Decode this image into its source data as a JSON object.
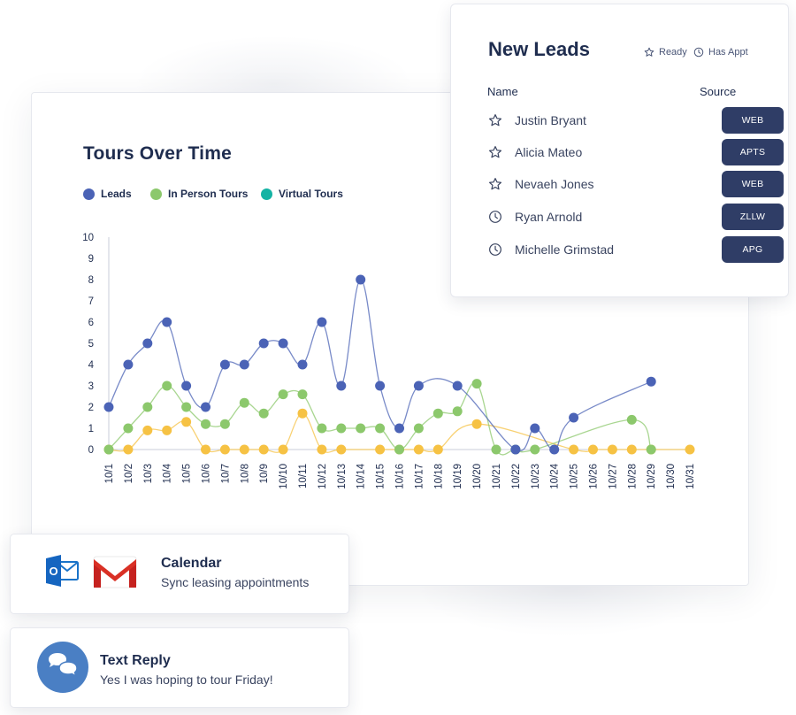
{
  "colors": {
    "navy": "#1f2d4f",
    "leads": "#4b63b6",
    "in_person": "#8cc86c",
    "virtual": "#14b3a4",
    "yellow": "#f6c244",
    "badge": "#2f3d66"
  },
  "chart_card": {
    "title": "Tours Over Time",
    "legend": [
      {
        "label": "Leads",
        "color": "#4b63b6"
      },
      {
        "label": "In Person Tours",
        "color": "#8cc86c"
      },
      {
        "label": "Virtual Tours",
        "color": "#14b3a4"
      }
    ]
  },
  "chart_data": {
    "type": "line",
    "title": "Tours Over Time",
    "ylim": [
      0,
      10
    ],
    "yticks": [
      0,
      1,
      2,
      3,
      4,
      5,
      6,
      7,
      8,
      9,
      10
    ],
    "categories": [
      "10/1",
      "10/2",
      "10/3",
      "10/4",
      "10/5",
      "10/6",
      "10/7",
      "10/8",
      "10/9",
      "10/10",
      "10/11",
      "10/12",
      "10/13",
      "10/14",
      "10/15",
      "10/16",
      "10/17",
      "10/18",
      "10/19",
      "10/20",
      "10/21",
      "10/22",
      "10/23",
      "10/24",
      "10/25",
      "10/26",
      "10/27",
      "10/28",
      "10/29",
      "10/30",
      "10/31"
    ],
    "series": [
      {
        "name": "Leads",
        "color": "#4b63b6",
        "values": [
          2,
          4,
          5,
          6,
          3,
          2,
          4,
          4,
          5,
          5,
          4,
          6,
          3,
          8,
          3,
          1,
          3,
          null,
          3,
          null,
          null,
          0,
          1,
          0,
          1.5,
          null,
          null,
          null,
          3.2,
          null,
          null
        ]
      },
      {
        "name": "In Person Tours",
        "color": "#8cc86c",
        "values": [
          0,
          1,
          2,
          3,
          2,
          1.2,
          1.2,
          2.2,
          1.7,
          2.6,
          2.6,
          1,
          1,
          1,
          1,
          0,
          1,
          1.7,
          1.8,
          3.1,
          0,
          0,
          0,
          null,
          null,
          null,
          null,
          1.4,
          0,
          null,
          null
        ]
      },
      {
        "name": "Virtual Tours",
        "color": "#f6c244",
        "values": [
          0,
          0,
          0.9,
          0.9,
          1.3,
          0,
          0,
          0,
          0,
          0,
          1.7,
          0,
          0,
          null,
          0,
          0,
          0,
          0,
          null,
          1.2,
          null,
          null,
          null,
          null,
          0,
          0,
          0,
          0,
          0,
          null,
          0
        ]
      }
    ],
    "grid": false,
    "legend_position": "top-left"
  },
  "leads_card": {
    "title": "New Leads",
    "status_ready": "Ready",
    "status_appt": "Has Appt",
    "col_name": "Name",
    "col_source": "Source",
    "rows": [
      {
        "name": "Justin Bryant",
        "icon": "star-icon",
        "source": "WEB"
      },
      {
        "name": "Alicia Mateo",
        "icon": "star-icon",
        "source": "APTS"
      },
      {
        "name": "Nevaeh Jones",
        "icon": "star-icon",
        "source": "WEB"
      },
      {
        "name": "Ryan Arnold",
        "icon": "clock-icon",
        "source": "ZLLW"
      },
      {
        "name": "Michelle Grimstad",
        "icon": "clock-icon",
        "source": "APG"
      }
    ]
  },
  "calendar_card": {
    "title": "Calendar",
    "subtitle": "Sync leasing appointments",
    "outlook_letter": "O",
    "icons": [
      "outlook-icon",
      "gmail-icon"
    ]
  },
  "text_card": {
    "title": "Text Reply",
    "message": "Yes I was hoping to tour Friday!",
    "icon": "chat-bubbles-icon"
  }
}
